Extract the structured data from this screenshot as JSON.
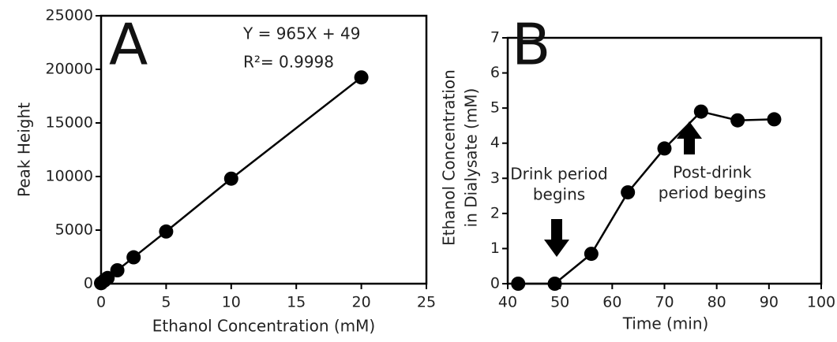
{
  "chart_data": [
    {
      "type": "line",
      "panel_label": "A",
      "xlabel": "Ethanol Concentration (mM)",
      "ylabel": "Peak Height",
      "annotations": [
        "Y = 965X + 49",
        "R²= 0.9998"
      ],
      "x": [
        0,
        0.25,
        0.5,
        1.25,
        2.5,
        5,
        10,
        20
      ],
      "values": [
        49,
        290,
        530,
        1250,
        2460,
        4870,
        9800,
        19250
      ],
      "color": "#000000",
      "xlim": [
        0,
        25
      ],
      "xticks": [
        0,
        5,
        10,
        15,
        20,
        25
      ],
      "ylim": [
        0,
        25000
      ],
      "yticks": [
        0,
        5000,
        10000,
        15000,
        20000,
        25000
      ]
    },
    {
      "type": "line",
      "panel_label": "B",
      "xlabel": "Time (min)",
      "ylabel": [
        "Ethanol Concentration",
        "in Dialysate (mM)"
      ],
      "annotations": [
        "Drink period",
        "begins",
        "Post-drink",
        "period begins"
      ],
      "x": [
        42,
        49,
        56,
        63,
        70,
        77,
        84,
        91
      ],
      "values": [
        0,
        0,
        0.85,
        2.6,
        3.85,
        4.9,
        4.65,
        4.68
      ],
      "color": "#000000",
      "xlim": [
        40,
        100
      ],
      "xticks": [
        40,
        50,
        60,
        70,
        80,
        90,
        100
      ],
      "ylim": [
        0,
        7
      ],
      "yticks": [
        0,
        1,
        2,
        3,
        4,
        5,
        6,
        7
      ]
    }
  ]
}
